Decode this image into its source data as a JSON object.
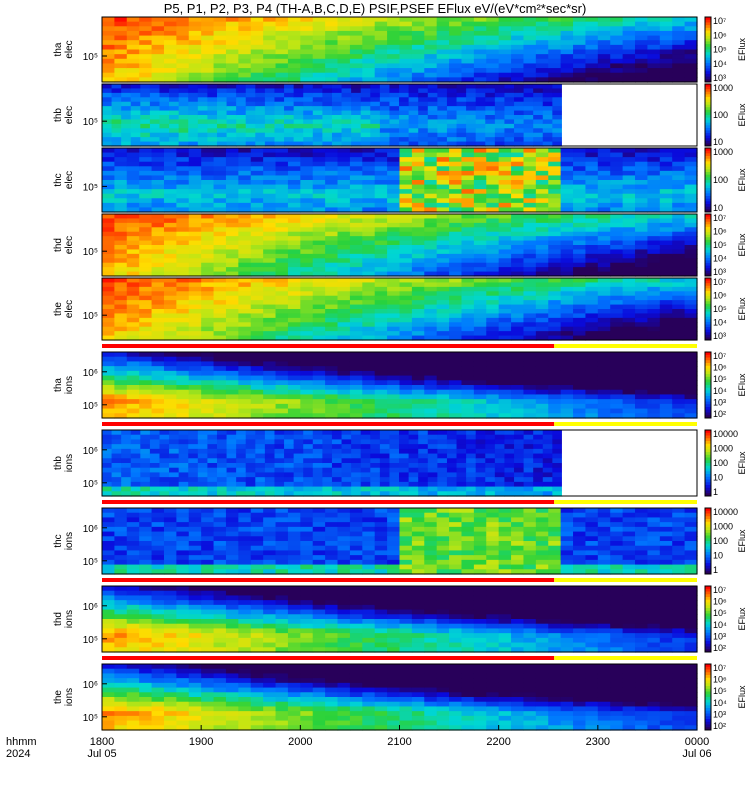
{
  "title": "P5, P1, P2, P3, P4 (TH-A,B,C,D,E) PSIF,PSEF EFlux eV/(eV*cm²*sec*sr)",
  "time_axis": {
    "label_line1": "hhmm",
    "label_line2": "2024",
    "ticks": [
      "1800",
      "1900",
      "2000",
      "2100",
      "2200",
      "2300",
      "0000"
    ],
    "date_start": "Jul 05",
    "date_end": "Jul 06"
  },
  "colors": {
    "fill": "#ff0000",
    "gap": "#ffff00",
    "background": "#ffffff"
  },
  "chart_data": [
    {
      "type": "heatmap",
      "name": "tha elec",
      "ylabel": [
        "tha",
        "elec"
      ],
      "ytick_labels": [
        "10⁵"
      ],
      "colorbar_label": "EFlux",
      "colorbar_ticks": [
        "10³",
        "10⁴",
        "10⁵",
        "10⁶",
        "10⁷"
      ],
      "xlim": [
        "18:00",
        "00:00"
      ],
      "data_end_frac": 1.0,
      "profile": "elec_strong"
    },
    {
      "type": "heatmap",
      "name": "thb elec",
      "ylabel": [
        "thb",
        "elec"
      ],
      "ytick_labels": [
        "10⁵"
      ],
      "colorbar_label": "EFlux",
      "colorbar_ticks": [
        "10",
        "100",
        "1000"
      ],
      "xlim": [
        "18:00",
        "00:00"
      ],
      "data_end_frac": 0.773,
      "profile": "elec_weak"
    },
    {
      "type": "heatmap",
      "name": "thc elec",
      "ylabel": [
        "thc",
        "elec"
      ],
      "ytick_labels": [
        "10⁵"
      ],
      "colorbar_label": "EFlux",
      "colorbar_ticks": [
        "10",
        "100",
        "1000"
      ],
      "xlim": [
        "18:00",
        "00:00"
      ],
      "data_end_frac": 1.0,
      "profile": "elec_weak_noisy"
    },
    {
      "type": "heatmap",
      "name": "thd elec",
      "ylabel": [
        "thd",
        "elec"
      ],
      "ytick_labels": [
        "10⁵"
      ],
      "colorbar_label": "EFlux",
      "colorbar_ticks": [
        "10³",
        "10⁴",
        "10⁵",
        "10⁶",
        "10⁷"
      ],
      "xlim": [
        "18:00",
        "00:00"
      ],
      "data_end_frac": 1.0,
      "profile": "elec_strong"
    },
    {
      "type": "heatmap",
      "name": "the elec",
      "ylabel": [
        "the",
        "elec"
      ],
      "ytick_labels": [
        "10⁵"
      ],
      "colorbar_label": "EFlux",
      "colorbar_ticks": [
        "10³",
        "10⁴",
        "10⁵",
        "10⁶",
        "10⁷"
      ],
      "xlim": [
        "18:00",
        "00:00"
      ],
      "data_end_frac": 1.0,
      "profile": "elec_strong"
    },
    {
      "type": "heatmap",
      "name": "tha ions",
      "ylabel": [
        "tha",
        "ions"
      ],
      "ytick_labels": [
        "10⁶",
        "10⁵"
      ],
      "colorbar_label": "EFlux",
      "colorbar_ticks": [
        "10²",
        "10³",
        "10⁴",
        "10⁵",
        "10⁶",
        "10⁷"
      ],
      "xlim": [
        "18:00",
        "00:00"
      ],
      "data_end_frac": 1.0,
      "profile": "ions"
    },
    {
      "type": "heatmap",
      "name": "thb ions",
      "ylabel": [
        "thb",
        "ions"
      ],
      "ytick_labels": [
        "10⁶",
        "10⁵"
      ],
      "colorbar_label": "EFlux",
      "colorbar_ticks": [
        "1",
        "10",
        "100",
        "1000",
        "10000"
      ],
      "xlim": [
        "18:00",
        "00:00"
      ],
      "data_end_frac": 0.773,
      "profile": "ions_weak"
    },
    {
      "type": "heatmap",
      "name": "thc ions",
      "ylabel": [
        "thc",
        "ions"
      ],
      "ytick_labels": [
        "10⁶",
        "10⁵"
      ],
      "colorbar_label": "EFlux",
      "colorbar_ticks": [
        "1",
        "10",
        "100",
        "1000",
        "10000"
      ],
      "xlim": [
        "18:00",
        "00:00"
      ],
      "data_end_frac": 1.0,
      "profile": "ions_weak_noisy"
    },
    {
      "type": "heatmap",
      "name": "thd ions",
      "ylabel": [
        "thd",
        "ions"
      ],
      "ytick_labels": [
        "10⁶",
        "10⁵"
      ],
      "colorbar_label": "EFlux",
      "colorbar_ticks": [
        "10²",
        "10³",
        "10⁴",
        "10⁵",
        "10⁶",
        "10⁷"
      ],
      "xlim": [
        "18:00",
        "00:00"
      ],
      "data_end_frac": 1.0,
      "profile": "ions"
    },
    {
      "type": "heatmap",
      "name": "the ions",
      "ylabel": [
        "the",
        "ions"
      ],
      "ytick_labels": [
        "10⁶",
        "10⁵"
      ],
      "colorbar_label": "EFlux",
      "colorbar_ticks": [
        "10²",
        "10³",
        "10⁴",
        "10⁵",
        "10⁶",
        "10⁷"
      ],
      "xlim": [
        "18:00",
        "00:00"
      ],
      "data_end_frac": 1.0,
      "profile": "ions"
    }
  ]
}
